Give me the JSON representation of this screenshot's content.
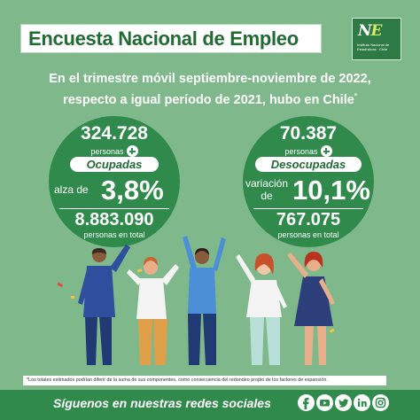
{
  "title": "Encuesta Nacional de Empleo",
  "logo": {
    "mark_n": "N",
    "mark_e": "E",
    "subtitle": "Instituto Nacional de Estadísticas · Chile"
  },
  "intro": {
    "line1": "En el trimestre móvil septiembre-noviembre de 2022,",
    "line2": "respecto a igual período de 2021, hubo en Chile",
    "footnote_mark": "*"
  },
  "ocupadas": {
    "change": "324.728",
    "change_unit": "personas",
    "category": "Ocupadas",
    "rate_label": "alza de",
    "rate": "3,8%",
    "total": "8.883.090",
    "total_unit": "personas en total"
  },
  "desocupadas": {
    "change": "70.387",
    "change_unit": "personas",
    "category": "Desocupadas",
    "rate_label": "variación de",
    "rate": "10,1%",
    "total": "767.075",
    "total_unit": "personas en total"
  },
  "footnote": "*Los totales estimados podrían diferir de la suma de sus componentes, como consecuencia del redondeo propio de los factores de expansión.",
  "footer": {
    "follow": "Síguenos en nuestras redes sociales",
    "icons": [
      "facebook-icon",
      "youtube-icon",
      "twitter-icon",
      "linkedin-icon",
      "instagram-icon"
    ]
  },
  "colors": {
    "background": "#7fb88a",
    "dark_green": "#2f8a4b",
    "title_green": "#1f6b32"
  }
}
